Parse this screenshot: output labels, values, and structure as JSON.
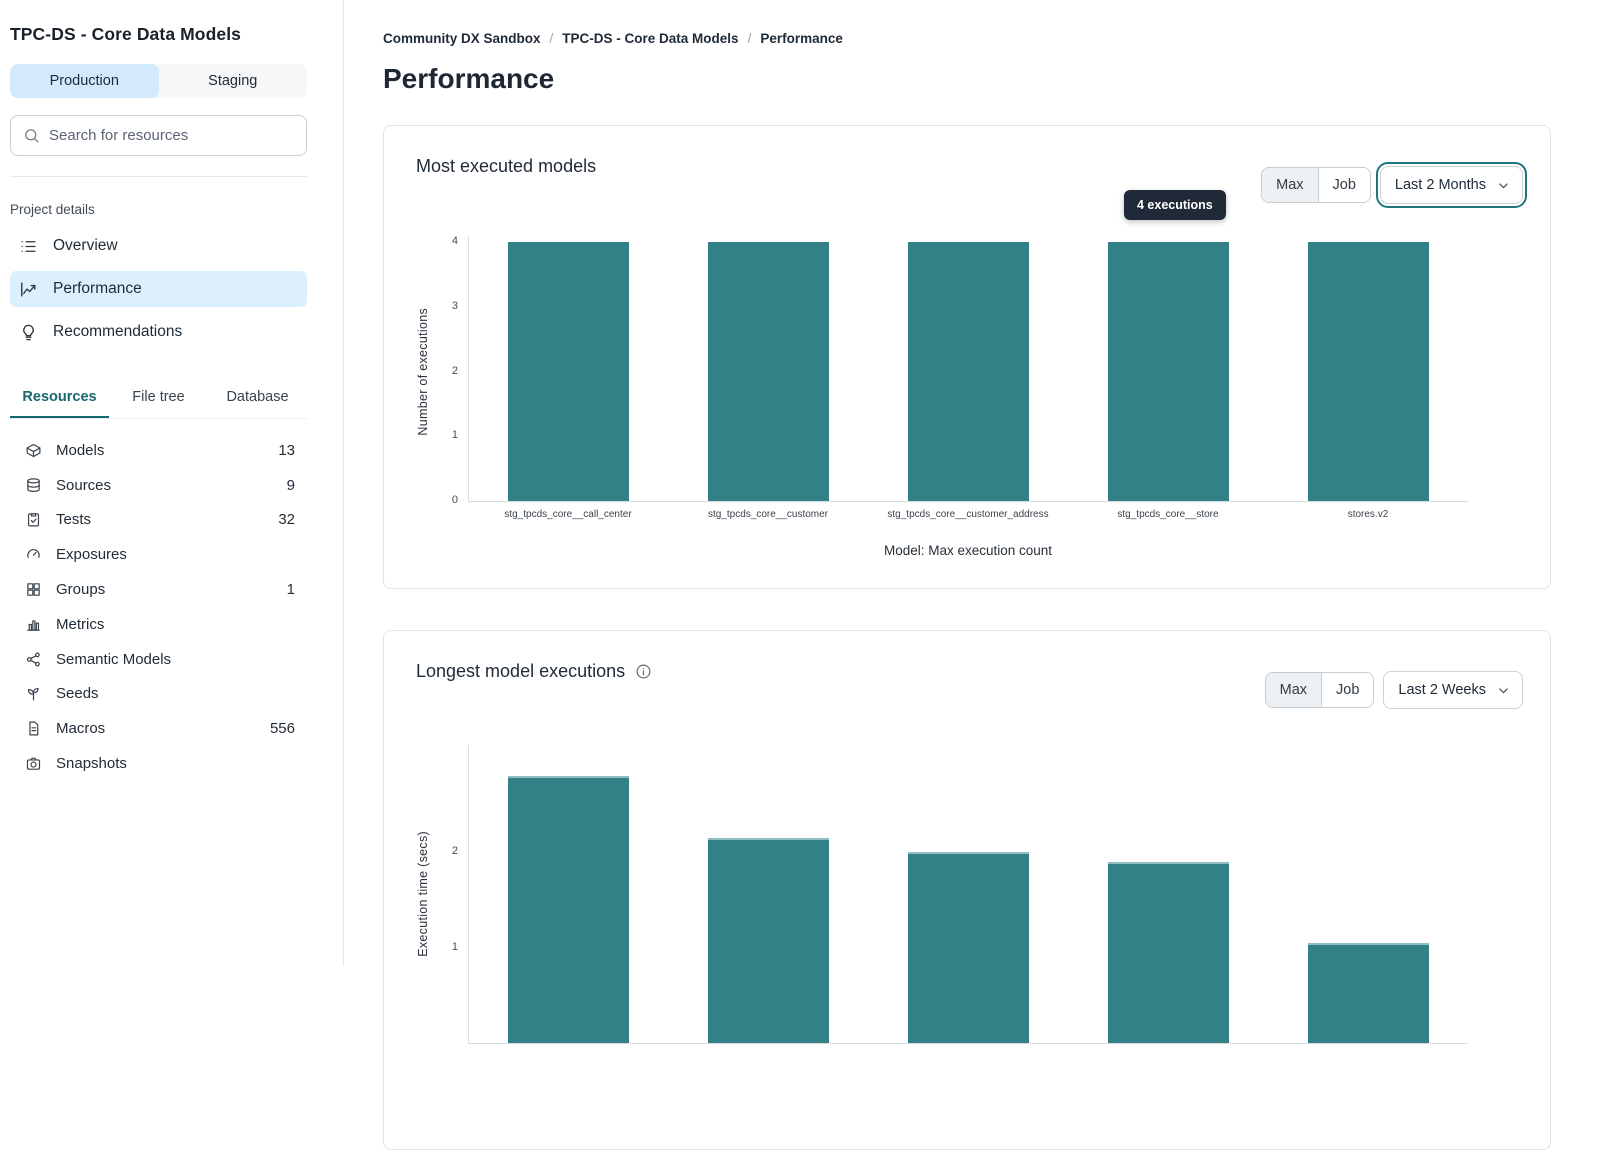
{
  "sidebar": {
    "title": "TPC-DS - Core Data Models",
    "env_tabs": [
      {
        "label": "Production",
        "selected": true
      },
      {
        "label": "Staging",
        "selected": false
      }
    ],
    "search_placeholder": "Search for resources",
    "project_details_label": "Project details",
    "nav_items": [
      {
        "label": "Overview",
        "icon": "list-icon",
        "selected": false
      },
      {
        "label": "Performance",
        "icon": "trend-chart-icon",
        "selected": true
      },
      {
        "label": "Recommendations",
        "icon": "lightbulb-icon",
        "selected": false
      }
    ],
    "resource_tabs": [
      {
        "label": "Resources",
        "selected": true
      },
      {
        "label": "File tree",
        "selected": false
      },
      {
        "label": "Database",
        "selected": false
      }
    ],
    "resources": [
      {
        "label": "Models",
        "count": "13",
        "icon": "cube-icon"
      },
      {
        "label": "Sources",
        "count": "9",
        "icon": "database-icon"
      },
      {
        "label": "Tests",
        "count": "32",
        "icon": "clipboard-check-icon"
      },
      {
        "label": "Exposures",
        "count": "",
        "icon": "gauge-icon"
      },
      {
        "label": "Groups",
        "count": "1",
        "icon": "grid-icon"
      },
      {
        "label": "Metrics",
        "count": "",
        "icon": "bar-chart-icon"
      },
      {
        "label": "Semantic Models",
        "count": "",
        "icon": "network-icon"
      },
      {
        "label": "Seeds",
        "count": "",
        "icon": "sprout-icon"
      },
      {
        "label": "Macros",
        "count": "556",
        "icon": "file-text-icon"
      },
      {
        "label": "Snapshots",
        "count": "",
        "icon": "camera-icon"
      }
    ]
  },
  "breadcrumb": {
    "items": [
      "Community DX Sandbox",
      "TPC-DS - Core Data Models",
      "Performance"
    ],
    "separator": "/"
  },
  "page_title": "Performance",
  "colors": {
    "bar_teal": "#338187",
    "selected_blue": "#dceffc",
    "accent_teal": "#15696f",
    "tooltip_bg": "#1f2937"
  },
  "cards": [
    {
      "title": "Most executed models",
      "has_info_icon": false,
      "toggle": [
        {
          "label": "Max",
          "selected": true
        },
        {
          "label": "Job",
          "selected": false
        }
      ],
      "range_select": {
        "value": "Last 2 Months",
        "focused": true
      },
      "tooltip_text": "4 executions"
    },
    {
      "title": "Longest model executions",
      "has_info_icon": true,
      "toggle": [
        {
          "label": "Max",
          "selected": true
        },
        {
          "label": "Job",
          "selected": false
        }
      ],
      "range_select": {
        "value": "Last 2 Weeks",
        "focused": false
      },
      "tooltip_text": ""
    }
  ],
  "chart_data": [
    {
      "type": "bar",
      "title": "Most executed models",
      "categories": [
        "stg_tpcds_core__call_center",
        "stg_tpcds_core__customer",
        "stg_tpcds_core__customer_address",
        "stg_tpcds_core__store",
        "stores.v2"
      ],
      "values": [
        4,
        4,
        4,
        4,
        4
      ],
      "xlabel": "Model: Max execution count",
      "ylabel": "Number of executions",
      "ylim": [
        0,
        4
      ],
      "yticks": [
        0,
        1,
        2,
        3,
        4
      ],
      "bar_color": "#338187",
      "grid": false,
      "legend": false,
      "tooltip": {
        "text": "4 executions",
        "category": "stg_tpcds_core__store"
      }
    },
    {
      "type": "bar",
      "title": "Longest model executions",
      "categories": [
        "",
        "",
        "",
        "",
        ""
      ],
      "values": [
        2.8,
        2.15,
        2.0,
        1.9,
        1.05
      ],
      "xlabel": "",
      "ylabel": "Execution time (secs)",
      "ylim": [
        0,
        3.1
      ],
      "yticks": [
        1,
        2
      ],
      "bar_color": "#338187",
      "grid": false,
      "legend": false,
      "note": "chart is truncated by the viewport bottom; category labels not visible"
    }
  ]
}
